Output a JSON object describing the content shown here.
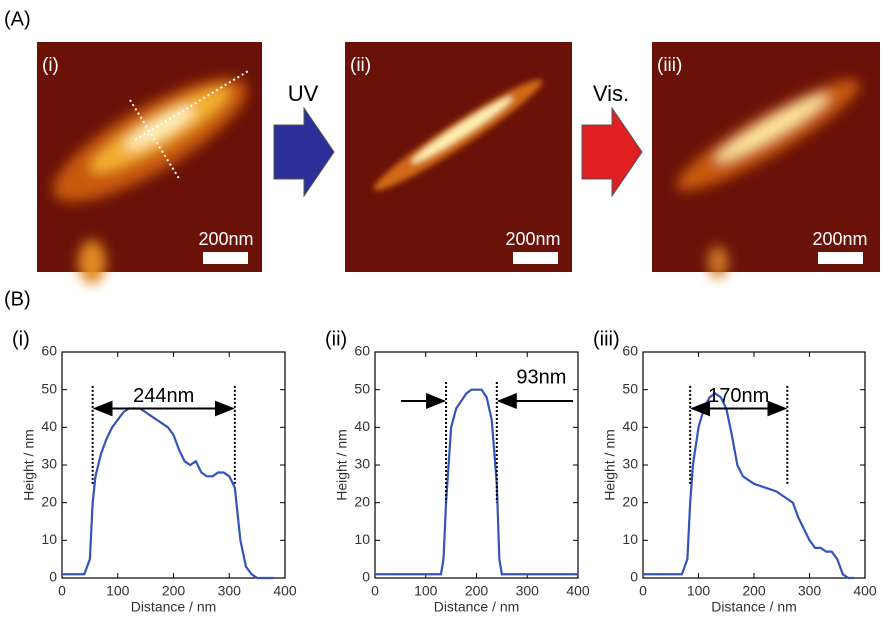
{
  "panel_a": {
    "label": "(A)",
    "images": [
      {
        "label": "(i)",
        "scale": "200nm"
      },
      {
        "label": "(ii)",
        "scale": "200nm"
      },
      {
        "label": "(iii)",
        "scale": "200nm"
      }
    ],
    "arrows": [
      "UV",
      "Vis."
    ]
  },
  "panel_b": {
    "label": "(B)"
  },
  "chart_data": [
    {
      "type": "line",
      "label": "(i)",
      "xlabel": "Distance / nm",
      "ylabel": "Height / nm",
      "xlim": [
        0,
        400
      ],
      "ylim": [
        0,
        60
      ],
      "xticks": [
        0,
        100,
        200,
        300,
        400
      ],
      "yticks": [
        0,
        10,
        20,
        30,
        40,
        50,
        60
      ],
      "annotation": "244nm",
      "markers": [
        55,
        310
      ],
      "series": [
        {
          "color": "#3355bb",
          "x": [
            0,
            10,
            20,
            30,
            40,
            50,
            55,
            60,
            70,
            80,
            90,
            100,
            110,
            120,
            130,
            140,
            150,
            160,
            170,
            180,
            190,
            200,
            210,
            220,
            230,
            240,
            250,
            260,
            270,
            280,
            290,
            300,
            310,
            320,
            330,
            340,
            350,
            360,
            380
          ],
          "values": [
            1,
            1,
            1,
            1,
            1,
            5,
            20,
            27,
            33,
            37,
            40,
            42,
            44,
            45,
            45,
            45,
            44,
            43,
            42,
            41,
            40,
            38,
            34,
            31,
            30,
            31,
            28,
            27,
            27,
            28,
            28,
            27,
            24,
            10,
            3,
            1,
            0,
            0,
            0
          ]
        }
      ]
    },
    {
      "type": "line",
      "label": "(ii)",
      "xlabel": "Distance / nm",
      "ylabel": "Height / nm",
      "xlim": [
        0,
        400
      ],
      "ylim": [
        0,
        60
      ],
      "xticks": [
        0,
        100,
        200,
        300,
        400
      ],
      "yticks": [
        0,
        10,
        20,
        30,
        40,
        50,
        60
      ],
      "annotation": "93nm",
      "markers": [
        140,
        240
      ],
      "series": [
        {
          "color": "#3355bb",
          "x": [
            0,
            20,
            40,
            60,
            80,
            100,
            120,
            130,
            135,
            140,
            150,
            160,
            170,
            180,
            190,
            200,
            210,
            220,
            230,
            240,
            245,
            250,
            270,
            300,
            330,
            360,
            400
          ],
          "values": [
            1,
            1,
            1,
            1,
            1,
            1,
            1,
            1,
            5,
            20,
            40,
            45,
            47,
            49,
            50,
            50,
            50,
            48,
            42,
            25,
            5,
            1,
            1,
            1,
            1,
            1,
            1
          ]
        }
      ]
    },
    {
      "type": "line",
      "label": "(iii)",
      "xlabel": "Distance / nm",
      "ylabel": "Height / nm",
      "xlim": [
        0,
        400
      ],
      "ylim": [
        0,
        60
      ],
      "xticks": [
        0,
        100,
        200,
        300,
        400
      ],
      "yticks": [
        0,
        10,
        20,
        30,
        40,
        50,
        60
      ],
      "annotation": "170nm",
      "markers": [
        85,
        260
      ],
      "series": [
        {
          "color": "#3355bb",
          "x": [
            0,
            20,
            40,
            60,
            70,
            80,
            85,
            90,
            100,
            110,
            120,
            130,
            140,
            150,
            160,
            170,
            180,
            190,
            200,
            220,
            240,
            260,
            270,
            280,
            290,
            300,
            310,
            320,
            330,
            340,
            350,
            360,
            370,
            380
          ],
          "values": [
            1,
            1,
            1,
            1,
            1,
            5,
            20,
            30,
            40,
            45,
            48,
            49,
            48,
            45,
            38,
            30,
            27,
            26,
            25,
            24,
            23,
            21,
            20,
            16,
            13,
            10,
            8,
            8,
            7,
            7,
            5,
            1,
            0,
            0
          ]
        }
      ]
    }
  ]
}
